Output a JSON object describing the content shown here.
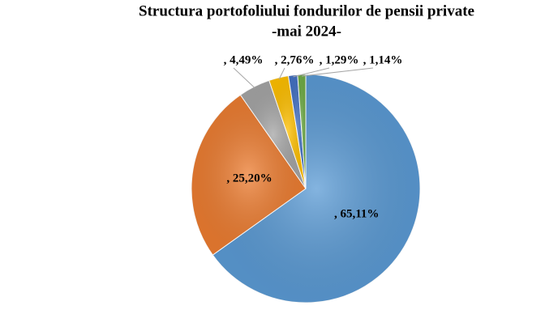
{
  "chart_data": {
    "type": "pie",
    "title": "Structura portofoliului fondurilor de pensii private",
    "subtitle": "-mai 2024-",
    "values": [
      65.11,
      25.2,
      4.49,
      2.76,
      1.29,
      1.14
    ],
    "value_labels": [
      ", 65,11%",
      ", 25,20%",
      ", 4,49%",
      ", 2,76%",
      ", 1,29%",
      ", 1,14%"
    ],
    "colors": [
      "#5b9bd5",
      "#ed7d31",
      "#a5a5a5",
      "#ffc000",
      "#4472c4",
      "#70ad47"
    ],
    "start_angle": 0,
    "direction": "clockwise"
  }
}
